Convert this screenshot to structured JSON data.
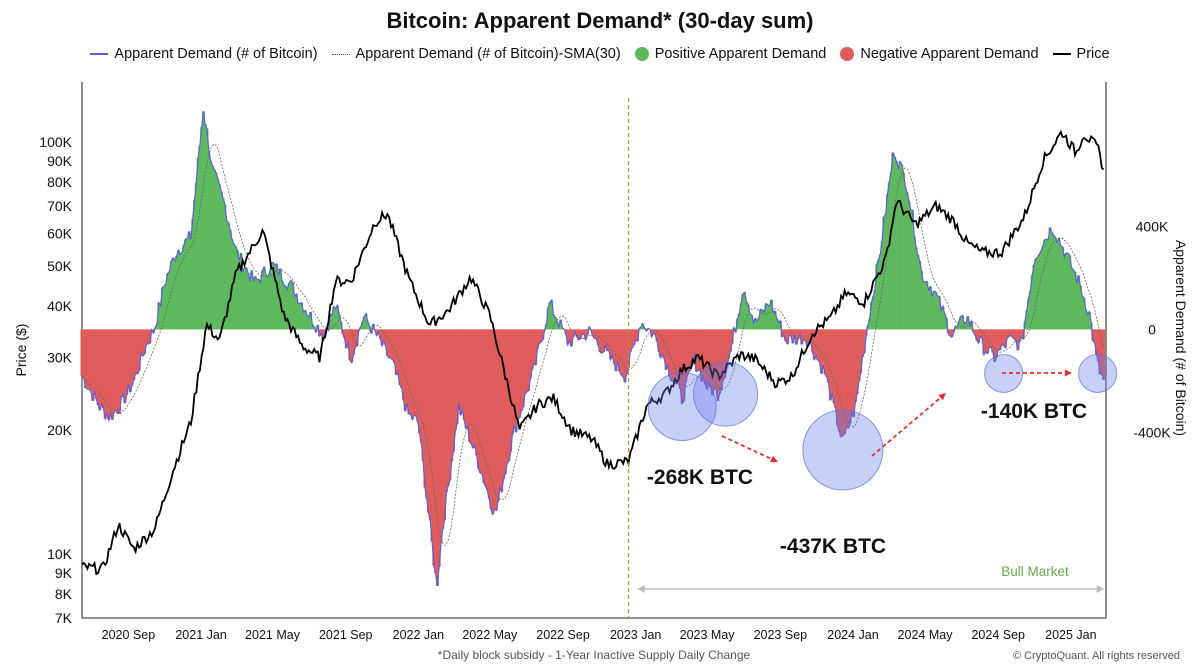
{
  "chart_data": {
    "type": "area",
    "title": "Bitcoin: Apparent Demand* (30-day sum)",
    "footnote": "*Daily block subsidy - 1-Year Inactive Supply Daily Change",
    "copyright": "© CryptoQuant. All rights reserved",
    "left_axis": {
      "label": "Price ($)",
      "scale": "log",
      "ticks": [
        {
          "value": 7000,
          "label": "7K"
        },
        {
          "value": 8000,
          "label": "8K"
        },
        {
          "value": 9000,
          "label": "9K"
        },
        {
          "value": 10000,
          "label": "10K"
        },
        {
          "value": 20000,
          "label": "20K"
        },
        {
          "value": 30000,
          "label": "30K"
        },
        {
          "value": 40000,
          "label": "40K"
        },
        {
          "value": 50000,
          "label": "50K"
        },
        {
          "value": 60000,
          "label": "60K"
        },
        {
          "value": 70000,
          "label": "70K"
        },
        {
          "value": 80000,
          "label": "80K"
        },
        {
          "value": 90000,
          "label": "90K"
        },
        {
          "value": 100000,
          "label": "100K"
        }
      ],
      "ylim": [
        7000,
        140000
      ]
    },
    "right_axis": {
      "label": "Apparent Demand (# of Bitcoin)",
      "ticks": [
        {
          "value": 400000,
          "label": "400K"
        },
        {
          "value": 0,
          "label": "0"
        },
        {
          "value": -400000,
          "label": "-400K"
        }
      ],
      "ylim": [
        -1120000,
        960000
      ]
    },
    "x_axis": {
      "range": [
        "2020-06-15",
        "2025-03-01"
      ],
      "ticks": [
        {
          "date": "2020-09-01",
          "label": "2020 Sep"
        },
        {
          "date": "2021-01-01",
          "label": "2021 Jan"
        },
        {
          "date": "2021-05-01",
          "label": "2021 May"
        },
        {
          "date": "2021-09-01",
          "label": "2021 Sep"
        },
        {
          "date": "2022-01-01",
          "label": "2022 Jan"
        },
        {
          "date": "2022-05-01",
          "label": "2022 May"
        },
        {
          "date": "2022-09-01",
          "label": "2022 Sep"
        },
        {
          "date": "2023-01-01",
          "label": "2023 Jan"
        },
        {
          "date": "2023-05-01",
          "label": "2023 May"
        },
        {
          "date": "2023-09-01",
          "label": "2023 Sep"
        },
        {
          "date": "2024-01-01",
          "label": "2024 Jan"
        },
        {
          "date": "2024-05-01",
          "label": "2024 May"
        },
        {
          "date": "2024-09-01",
          "label": "2024 Sep"
        },
        {
          "date": "2025-01-01",
          "label": "2025 Jan"
        }
      ]
    },
    "legend": [
      {
        "name": "Apparent Demand (# of Bitcoin)",
        "color": "#5b5fd6",
        "style": "line"
      },
      {
        "name": "Apparent Demand (# of Bitcoin)-SMA(30)",
        "color": "#666666",
        "style": "dotted"
      },
      {
        "name": "Positive Apparent Demand",
        "color": "#5cb85c",
        "style": "area"
      },
      {
        "name": "Negative Apparent Demand",
        "color": "#e05a5a",
        "style": "area"
      },
      {
        "name": "Price",
        "color": "#000000",
        "style": "line"
      }
    ],
    "series": [
      {
        "name": "Apparent Demand (# of Bitcoin)",
        "axis": "right",
        "points": [
          [
            "2020-06-15",
            -180000
          ],
          [
            "2020-07-15",
            -300000
          ],
          [
            "2020-08-01",
            -340000
          ],
          [
            "2020-08-20",
            -290000
          ],
          [
            "2020-09-10",
            -200000
          ],
          [
            "2020-10-01",
            -60000
          ],
          [
            "2020-10-15",
            5000
          ],
          [
            "2020-11-01",
            180000
          ],
          [
            "2020-11-20",
            300000
          ],
          [
            "2020-12-15",
            360000
          ],
          [
            "2021-01-05",
            860000
          ],
          [
            "2021-01-20",
            620000
          ],
          [
            "2021-02-10",
            480000
          ],
          [
            "2021-03-01",
            300000
          ],
          [
            "2021-04-01",
            180000
          ],
          [
            "2021-05-01",
            250000
          ],
          [
            "2021-06-01",
            170000
          ],
          [
            "2021-07-01",
            60000
          ],
          [
            "2021-07-25",
            -20000
          ],
          [
            "2021-08-15",
            90000
          ],
          [
            "2021-09-10",
            -110000
          ],
          [
            "2021-10-01",
            50000
          ],
          [
            "2021-10-25",
            -30000
          ],
          [
            "2021-11-20",
            -140000
          ],
          [
            "2021-12-15",
            -330000
          ],
          [
            "2022-01-01",
            -360000
          ],
          [
            "2022-01-20",
            -750000
          ],
          [
            "2022-02-01",
            -1000000
          ],
          [
            "2022-02-10",
            -780000
          ],
          [
            "2022-03-10",
            -300000
          ],
          [
            "2022-04-10",
            -500000
          ],
          [
            "2022-05-10",
            -720000
          ],
          [
            "2022-06-10",
            -400000
          ],
          [
            "2022-07-15",
            -150000
          ],
          [
            "2022-08-10",
            100000
          ],
          [
            "2022-09-10",
            -50000
          ],
          [
            "2022-10-15",
            -10000
          ],
          [
            "2022-11-15",
            -100000
          ],
          [
            "2022-12-15",
            -180000
          ],
          [
            "2023-01-10",
            30000
          ],
          [
            "2023-02-01",
            -20000
          ],
          [
            "2023-03-01",
            -170000
          ],
          [
            "2023-03-20",
            -268000
          ],
          [
            "2023-04-10",
            -120000
          ],
          [
            "2023-05-01",
            -220000
          ],
          [
            "2023-05-20",
            -250000
          ],
          [
            "2023-06-10",
            -80000
          ],
          [
            "2023-07-01",
            170000
          ],
          [
            "2023-07-20",
            20000
          ],
          [
            "2023-08-15",
            110000
          ],
          [
            "2023-09-10",
            -40000
          ],
          [
            "2023-10-15",
            -30000
          ],
          [
            "2023-11-15",
            -170000
          ],
          [
            "2023-12-15",
            -437000
          ],
          [
            "2024-01-05",
            -300000
          ],
          [
            "2024-01-25",
            10000
          ],
          [
            "2024-02-15",
            290000
          ],
          [
            "2024-03-10",
            700000
          ],
          [
            "2024-04-01",
            560000
          ],
          [
            "2024-04-25",
            220000
          ],
          [
            "2024-05-20",
            130000
          ],
          [
            "2024-06-15",
            -20000
          ],
          [
            "2024-07-10",
            50000
          ],
          [
            "2024-08-01",
            -50000
          ],
          [
            "2024-08-25",
            -110000
          ],
          [
            "2024-09-20",
            -40000
          ],
          [
            "2024-10-10",
            -60000
          ],
          [
            "2024-11-01",
            280000
          ],
          [
            "2024-12-01",
            400000
          ],
          [
            "2024-12-20",
            310000
          ],
          [
            "2025-01-15",
            180000
          ],
          [
            "2025-02-01",
            60000
          ],
          [
            "2025-02-15",
            -140000
          ],
          [
            "2025-02-25",
            -200000
          ]
        ]
      },
      {
        "name": "Price",
        "axis": "left",
        "points": [
          [
            "2020-06-15",
            9300
          ],
          [
            "2020-07-20",
            9200
          ],
          [
            "2020-08-15",
            11800
          ],
          [
            "2020-09-10",
            10300
          ],
          [
            "2020-10-15",
            11500
          ],
          [
            "2020-11-15",
            16000
          ],
          [
            "2020-12-15",
            21000
          ],
          [
            "2021-01-10",
            36000
          ],
          [
            "2021-02-01",
            33000
          ],
          [
            "2021-03-01",
            48000
          ],
          [
            "2021-04-15",
            61000
          ],
          [
            "2021-05-20",
            38000
          ],
          [
            "2021-06-20",
            32000
          ],
          [
            "2021-07-20",
            30000
          ],
          [
            "2021-08-15",
            46000
          ],
          [
            "2021-09-10",
            46000
          ],
          [
            "2021-10-20",
            64000
          ],
          [
            "2021-11-10",
            67000
          ],
          [
            "2021-12-15",
            47000
          ],
          [
            "2022-01-20",
            36000
          ],
          [
            "2022-02-20",
            39000
          ],
          [
            "2022-03-30",
            47000
          ],
          [
            "2022-05-01",
            38000
          ],
          [
            "2022-06-20",
            20000
          ],
          [
            "2022-07-20",
            23000
          ],
          [
            "2022-08-15",
            24000
          ],
          [
            "2022-09-15",
            20000
          ],
          [
            "2022-10-20",
            19000
          ],
          [
            "2022-11-15",
            16500
          ],
          [
            "2022-12-20",
            16800
          ],
          [
            "2023-01-20",
            23000
          ],
          [
            "2023-02-20",
            24500
          ],
          [
            "2023-03-20",
            28000
          ],
          [
            "2023-04-15",
            30000
          ],
          [
            "2023-05-20",
            27000
          ],
          [
            "2023-06-25",
            30500
          ],
          [
            "2023-07-20",
            29800
          ],
          [
            "2023-08-25",
            26000
          ],
          [
            "2023-09-20",
            27000
          ],
          [
            "2023-10-25",
            34500
          ],
          [
            "2023-11-25",
            37500
          ],
          [
            "2023-12-20",
            43000
          ],
          [
            "2024-01-20",
            41000
          ],
          [
            "2024-02-25",
            52000
          ],
          [
            "2024-03-14",
            72000
          ],
          [
            "2024-04-15",
            63000
          ],
          [
            "2024-05-20",
            70000
          ],
          [
            "2024-06-20",
            64000
          ],
          [
            "2024-07-10",
            57000
          ],
          [
            "2024-08-05",
            54000
          ],
          [
            "2024-09-06",
            54000
          ],
          [
            "2024-10-15",
            66000
          ],
          [
            "2024-11-15",
            90000
          ],
          [
            "2024-12-17",
            106000
          ],
          [
            "2025-01-10",
            94000
          ],
          [
            "2025-01-22",
            105000
          ],
          [
            "2025-02-15",
            97000
          ],
          [
            "2025-02-25",
            86000
          ]
        ]
      }
    ],
    "annotations": [
      {
        "text": "-268K BTC",
        "date": "2023-03-20",
        "value": -268000,
        "bubble": "large"
      },
      {
        "text": "-437K BTC",
        "date": "2023-12-15",
        "value": -437000,
        "bubble": "large"
      },
      {
        "text": "-140K BTC",
        "date": "2025-02-15",
        "value": -140000,
        "bubble": "small"
      },
      {
        "text": "Bull Market",
        "from": "2023-01-01",
        "to": "2025-02-25"
      }
    ],
    "vertical_marker": {
      "date": "2022-12-20",
      "style": "dashed"
    },
    "grid": false
  }
}
